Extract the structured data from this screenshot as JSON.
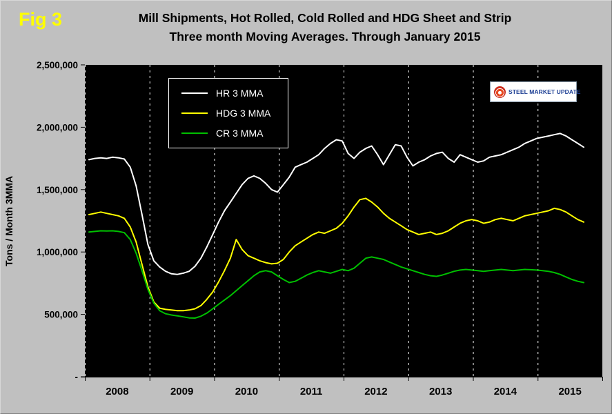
{
  "logo": {
    "text": "STEEL MARKET UPDATE"
  },
  "chart_data": {
    "type": "line",
    "fig_label": "Fig 3",
    "title": "Mill Shipments, Hot Rolled, Cold Rolled and HDG Sheet and Strip",
    "subtitle": "Three month Moving Averages. Through January 2015",
    "ylabel": "Tons / Month 3MMA",
    "ylim": [
      0,
      2500000
    ],
    "grid": "vertical-dashed",
    "legend_position": "top-left-inside",
    "colors": {
      "page_bg": "#C0C0C0",
      "plot_bg": "#000000",
      "grid": "#FFFFFF",
      "fig_label": "#FFFF00"
    },
    "y_ticks": [
      {
        "label": "2,500,000",
        "value": 2500000
      },
      {
        "label": "2,000,000",
        "value": 2000000
      },
      {
        "label": "1,500,000",
        "value": 1500000
      },
      {
        "label": "1,000,000",
        "value": 1000000
      },
      {
        "label": "500,000",
        "value": 500000
      },
      {
        "label": "-",
        "value": 0
      }
    ],
    "x_tick_labels": [
      "2008",
      "2009",
      "2010",
      "2011",
      "2012",
      "2013",
      "2014",
      "2015"
    ],
    "x_axis": {
      "start": "2008-01",
      "end": "2015-01",
      "frequency": "monthly",
      "points": 85
    },
    "series": [
      {
        "name": "HR 3 MMA",
        "color": "#FFFFFF",
        "values": [
          1740000,
          1750000,
          1755000,
          1750000,
          1760000,
          1755000,
          1745000,
          1680000,
          1530000,
          1300000,
          1060000,
          930000,
          880000,
          845000,
          825000,
          820000,
          830000,
          845000,
          885000,
          950000,
          1040000,
          1140000,
          1240000,
          1330000,
          1400000,
          1470000,
          1540000,
          1590000,
          1610000,
          1590000,
          1550000,
          1500000,
          1480000,
          1540000,
          1600000,
          1680000,
          1700000,
          1720000,
          1750000,
          1780000,
          1830000,
          1870000,
          1900000,
          1890000,
          1790000,
          1750000,
          1800000,
          1830000,
          1850000,
          1780000,
          1700000,
          1780000,
          1860000,
          1850000,
          1760000,
          1690000,
          1720000,
          1740000,
          1770000,
          1790000,
          1800000,
          1750000,
          1720000,
          1780000,
          1760000,
          1740000,
          1720000,
          1730000,
          1760000,
          1770000,
          1780000,
          1800000,
          1820000,
          1840000,
          1870000,
          1890000,
          1910000,
          1920000,
          1930000,
          1940000,
          1950000,
          1930000,
          1900000,
          1870000,
          1840000
        ]
      },
      {
        "name": "HDG 3 MMA",
        "color": "#FFFF00",
        "values": [
          1300000,
          1310000,
          1320000,
          1310000,
          1300000,
          1290000,
          1270000,
          1200000,
          1080000,
          900000,
          720000,
          600000,
          550000,
          540000,
          535000,
          530000,
          530000,
          535000,
          545000,
          570000,
          620000,
          680000,
          760000,
          850000,
          950000,
          1100000,
          1020000,
          970000,
          950000,
          930000,
          915000,
          905000,
          910000,
          940000,
          1000000,
          1050000,
          1080000,
          1110000,
          1140000,
          1160000,
          1150000,
          1170000,
          1190000,
          1230000,
          1290000,
          1360000,
          1420000,
          1430000,
          1400000,
          1360000,
          1310000,
          1270000,
          1240000,
          1210000,
          1180000,
          1160000,
          1140000,
          1150000,
          1160000,
          1140000,
          1150000,
          1170000,
          1200000,
          1230000,
          1250000,
          1260000,
          1250000,
          1230000,
          1240000,
          1260000,
          1270000,
          1260000,
          1250000,
          1270000,
          1290000,
          1300000,
          1310000,
          1320000,
          1330000,
          1350000,
          1340000,
          1320000,
          1290000,
          1260000,
          1240000
        ]
      },
      {
        "name": "CR 3 MMA",
        "color": "#00C000",
        "values": [
          1160000,
          1165000,
          1170000,
          1168000,
          1170000,
          1165000,
          1155000,
          1100000,
          990000,
          850000,
          700000,
          590000,
          530000,
          505000,
          495000,
          488000,
          480000,
          472000,
          470000,
          485000,
          510000,
          545000,
          580000,
          615000,
          650000,
          690000,
          730000,
          770000,
          810000,
          840000,
          850000,
          840000,
          810000,
          780000,
          755000,
          765000,
          790000,
          815000,
          835000,
          850000,
          840000,
          830000,
          845000,
          860000,
          850000,
          870000,
          910000,
          950000,
          960000,
          950000,
          940000,
          920000,
          900000,
          880000,
          865000,
          850000,
          835000,
          820000,
          810000,
          805000,
          815000,
          830000,
          845000,
          855000,
          860000,
          855000,
          850000,
          845000,
          850000,
          855000,
          860000,
          855000,
          850000,
          855000,
          860000,
          858000,
          855000,
          850000,
          845000,
          835000,
          820000,
          800000,
          780000,
          765000,
          755000
        ]
      }
    ]
  }
}
